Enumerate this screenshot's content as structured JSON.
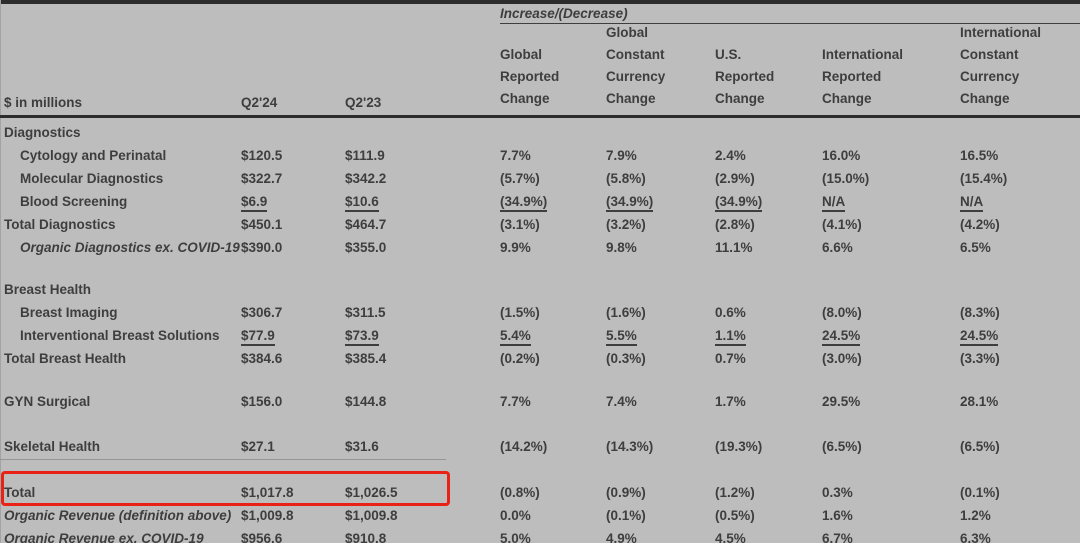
{
  "page": {
    "background_color": "#bdbdbd",
    "highlight_color": "#ea2115",
    "text_color": "#3e3e3e"
  },
  "header": {
    "units_label": "$ in millions",
    "increase_decrease_label": "Increase/(Decrease)",
    "period_columns": [
      "Q2'24",
      "Q2'23"
    ],
    "change_columns": [
      {
        "name": "global-reported-change",
        "lines": [
          "Global",
          "Reported",
          "Change"
        ]
      },
      {
        "name": "global-constant-currency-change",
        "lines": [
          "Global",
          "Constant",
          "Currency",
          "Change"
        ]
      },
      {
        "name": "us-reported-change",
        "lines": [
          "U.S.",
          "Reported",
          "Change"
        ]
      },
      {
        "name": "international-reported-change",
        "lines": [
          "International",
          "Reported",
          "Change"
        ]
      },
      {
        "name": "international-constant-currency-change",
        "lines": [
          "International",
          "Constant",
          "Currency",
          "Change"
        ]
      }
    ]
  },
  "table": {
    "rows": [
      {
        "label": "Diagnostics",
        "type": "section",
        "values": []
      },
      {
        "label": "Cytology and Perinatal",
        "type": "data",
        "indent": true,
        "values": [
          "$120.5",
          "$111.9",
          "7.7%",
          "7.9%",
          "2.4%",
          "16.0%",
          "16.5%"
        ]
      },
      {
        "label": "Molecular Diagnostics",
        "type": "data",
        "indent": true,
        "values": [
          "$322.7",
          "$342.2",
          "(5.7%)",
          "(5.8%)",
          "(2.9%)",
          "(15.0%)",
          "(15.4%)"
        ]
      },
      {
        "label": "Blood Screening",
        "type": "data",
        "indent": true,
        "underline": true,
        "values": [
          "$6.9",
          "$10.6",
          "(34.9%)",
          "(34.9%)",
          "(34.9%)",
          "N/A",
          "N/A"
        ]
      },
      {
        "label": "Total Diagnostics",
        "type": "data",
        "values": [
          "$450.1",
          "$464.7",
          "(3.1%)",
          "(3.2%)",
          "(2.8%)",
          "(4.1%)",
          "(4.2%)"
        ]
      },
      {
        "label": "Organic Diagnostics ex. COVID-19",
        "type": "data",
        "indent": true,
        "italic": true,
        "values": [
          "$390.0",
          "$355.0",
          "9.9%",
          "9.8%",
          "11.1%",
          "6.6%",
          "6.5%"
        ]
      },
      {
        "label": "Breast Health",
        "type": "section",
        "spacer_before": 19,
        "values": []
      },
      {
        "label": "Breast Imaging",
        "type": "data",
        "indent": true,
        "values": [
          "$306.7",
          "$311.5",
          "(1.5%)",
          "(1.6%)",
          "0.6%",
          "(8.0%)",
          "(8.3%)"
        ]
      },
      {
        "label": "Interventional Breast Solutions",
        "type": "data",
        "indent": true,
        "underline": true,
        "values": [
          "$77.9",
          "$73.9",
          "5.4%",
          "5.5%",
          "1.1%",
          "24.5%",
          "24.5%"
        ]
      },
      {
        "label": "Total Breast Health",
        "type": "data",
        "values": [
          "$384.6",
          "$385.4",
          "(0.2%)",
          "(0.3%)",
          "0.7%",
          "(3.0%)",
          "(3.3%)"
        ]
      },
      {
        "label": "GYN Surgical",
        "type": "data",
        "spacer_before": 20,
        "values": [
          "$156.0",
          "$144.8",
          "7.7%",
          "7.4%",
          "1.7%",
          "29.5%",
          "28.1%"
        ]
      },
      {
        "label": "Skeletal Health",
        "type": "data",
        "spacer_before": 22,
        "values": [
          "$27.1",
          "$31.6",
          "(14.2%)",
          "(14.3%)",
          "(19.3%)",
          "(6.5%)",
          "(6.5%)"
        ]
      },
      {
        "label": "Total",
        "type": "data",
        "spacer_before": 23,
        "highlighted": true,
        "values": [
          "$1,017.8",
          "$1,026.5",
          "(0.8%)",
          "(0.9%)",
          "(1.2%)",
          "0.3%",
          "(0.1%)"
        ]
      },
      {
        "label": "Organic Revenue (definition above)",
        "type": "data",
        "italic": true,
        "values": [
          "$1,009.8",
          "$1,009.8",
          "0.0%",
          "(0.1%)",
          "(0.5%)",
          "1.6%",
          "1.2%"
        ]
      },
      {
        "label": "Organic Revenue ex. COVID-19",
        "type": "data",
        "italic": true,
        "values": [
          "$956.6",
          "$910.8",
          "5.0%",
          "4.9%",
          "4.5%",
          "6.7%",
          "6.3%"
        ]
      }
    ]
  }
}
